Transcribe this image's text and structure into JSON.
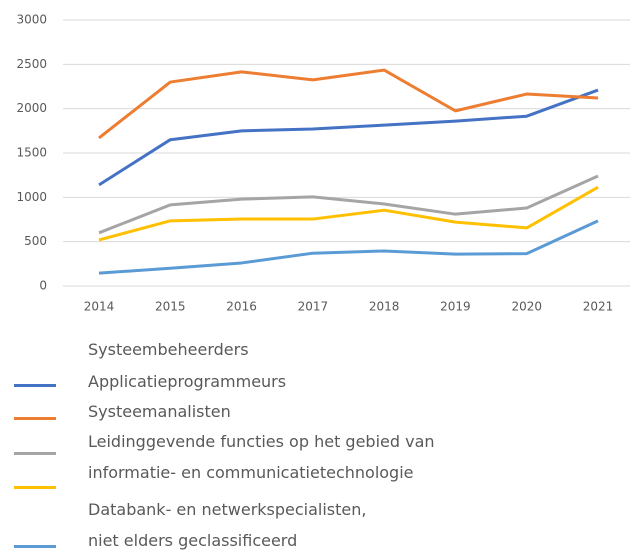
{
  "chart_data": {
    "type": "line",
    "categories": [
      "2014",
      "2015",
      "2016",
      "2017",
      "2018",
      "2019",
      "2020",
      "2021"
    ],
    "series": [
      {
        "name": "Systeembeheerders",
        "color": "#4472c4",
        "values": [
          1140,
          1650,
          1750,
          1770,
          1815,
          1860,
          1915,
          2210
        ]
      },
      {
        "name": "Applicatieprogrammeurs",
        "color": "#ed7d31",
        "values": [
          1670,
          2300,
          2415,
          2325,
          2435,
          1975,
          2165,
          2120
        ]
      },
      {
        "name": "Systeemanalisten",
        "color": "#a5a5a5",
        "values": [
          600,
          915,
          980,
          1005,
          925,
          810,
          880,
          1240
        ]
      },
      {
        "name": "Leidinggevende functies op het gebied van informatie- en communicatietechnologie",
        "color": "#ffc000",
        "values": [
          520,
          735,
          755,
          755,
          855,
          720,
          655,
          1115
        ]
      },
      {
        "name": "Databank- en netwerkspecialisten, niet elders geclassificeerd",
        "color": "#5b9bd5",
        "values": [
          145,
          200,
          260,
          370,
          395,
          360,
          365,
          735
        ]
      }
    ],
    "ylim": [
      0,
      3000
    ],
    "yticks": [
      0,
      500,
      1000,
      1500,
      2000,
      2500,
      3000
    ],
    "grid": true
  }
}
